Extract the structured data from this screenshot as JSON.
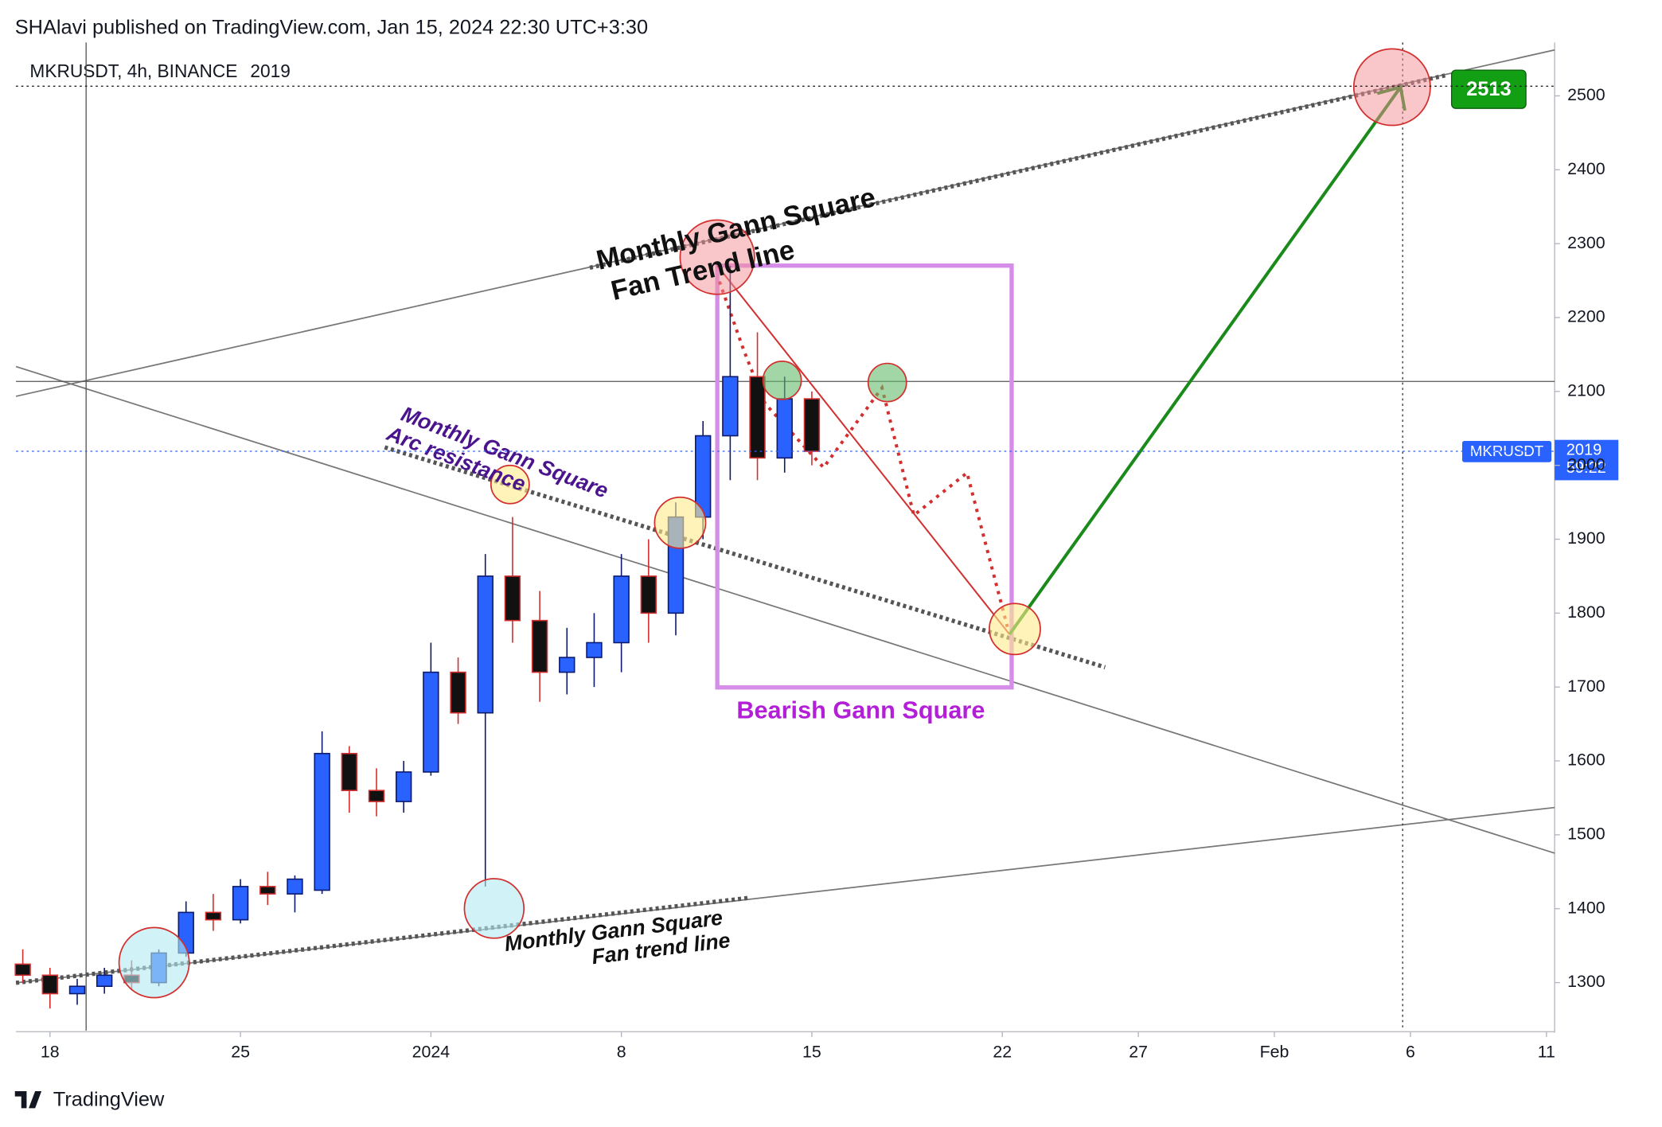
{
  "header": {
    "publisher": "SHAlavi published on TradingView.com, Jan 15, 2024 22:30 UTC+3:30",
    "brand": "TradingView"
  },
  "chart_data": {
    "type": "candlestick",
    "title": "MKRUSDT, 4h, BINANCE",
    "last_price": 2019,
    "symbol_badge": "MKRUSDT",
    "countdown": "59:22",
    "target_price": 2513,
    "up_color": "#0d1b6e",
    "down_color": "#d32f2f",
    "x": [
      17,
      18,
      19,
      20,
      21,
      22,
      23,
      24,
      25,
      26,
      27,
      28,
      29,
      30,
      31,
      32,
      33,
      34,
      35,
      36,
      37,
      38,
      39,
      40,
      41,
      42,
      43,
      44,
      45,
      46
    ],
    "open": [
      1325,
      1310,
      1285,
      1295,
      1310,
      1300,
      1340,
      1395,
      1385,
      1430,
      1420,
      1425,
      1610,
      1560,
      1545,
      1585,
      1720,
      1665,
      1850,
      1790,
      1720,
      1740,
      1760,
      1850,
      1800,
      1930,
      2040,
      2120,
      2010,
      2090
    ],
    "high": [
      1345,
      1320,
      1305,
      1320,
      1330,
      1345,
      1410,
      1420,
      1440,
      1450,
      1445,
      1640,
      1620,
      1590,
      1600,
      1760,
      1740,
      1880,
      1930,
      1830,
      1780,
      1800,
      1880,
      1900,
      1950,
      2060,
      2270,
      2180,
      2120,
      2100
    ],
    "low": [
      1300,
      1265,
      1270,
      1285,
      1290,
      1295,
      1335,
      1370,
      1380,
      1405,
      1395,
      1420,
      1530,
      1525,
      1530,
      1580,
      1650,
      1430,
      1760,
      1680,
      1690,
      1700,
      1720,
      1760,
      1770,
      1900,
      1980,
      1980,
      1990,
      2000
    ],
    "close": [
      1310,
      1285,
      1295,
      1310,
      1300,
      1340,
      1395,
      1385,
      1430,
      1420,
      1440,
      1610,
      1560,
      1545,
      1585,
      1720,
      1665,
      1850,
      1790,
      1720,
      1740,
      1760,
      1850,
      1800,
      1930,
      2040,
      2120,
      2010,
      2090,
      2019
    ],
    "xlim": [
      16.75,
      73.3
    ],
    "xticks": [
      {
        "value": 18,
        "label": "18"
      },
      {
        "value": 25,
        "label": "25"
      },
      {
        "value": 32,
        "label": "2024"
      },
      {
        "value": 39,
        "label": "8"
      },
      {
        "value": 46,
        "label": "15"
      },
      {
        "value": 53,
        "label": "22"
      },
      {
        "value": 58,
        "label": "27"
      },
      {
        "value": 63,
        "label": "Feb"
      },
      {
        "value": 68,
        "label": "6"
      },
      {
        "value": 73,
        "label": "11"
      }
    ],
    "ylim": [
      1235,
      2565
    ],
    "yticks": [
      1300,
      1400,
      1500,
      1600,
      1700,
      1800,
      1900,
      2000,
      2100,
      2200,
      2300,
      2400,
      2500
    ],
    "annotations": {
      "upper_fan": [
        "Monthly Gann Square",
        "Fan Trend line"
      ],
      "arc": [
        "Monthly Gann Square",
        "Arc resistance"
      ],
      "bearish": "Bearish Gann Square",
      "lower_fan": [
        "Monthly Gann Square",
        "Fan trend line"
      ]
    }
  }
}
